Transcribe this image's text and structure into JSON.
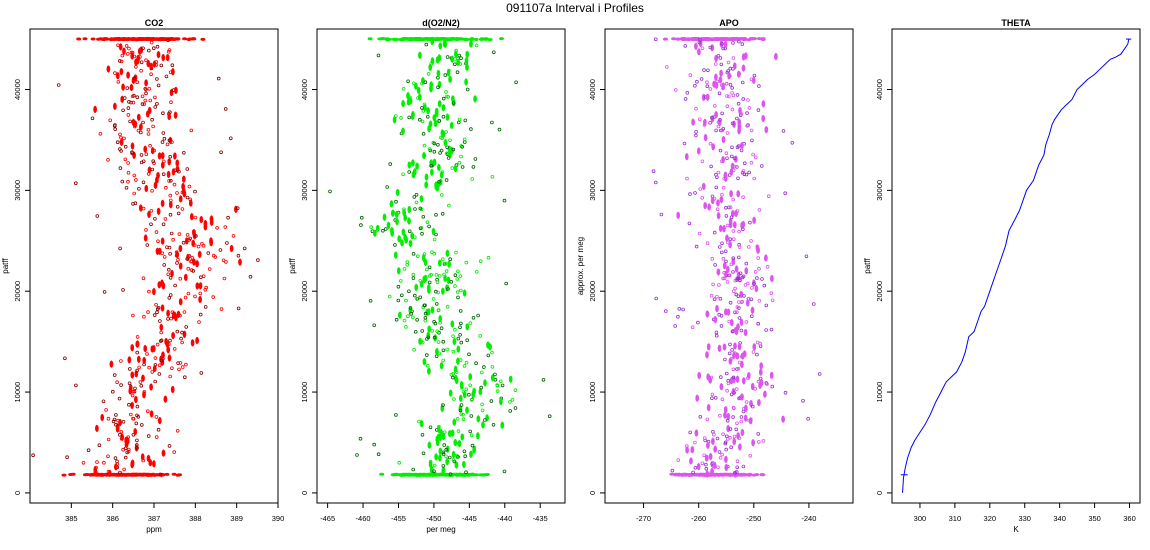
{
  "figure": {
    "title": "091107a   Interval i Profiles"
  },
  "chart_data": [
    {
      "type": "scatter",
      "title": "CO2",
      "xlabel": "ppm",
      "ylabel": "patff",
      "xlim": [
        384.0,
        390.0
      ],
      "ylim": [
        -1000,
        46000
      ],
      "xticks": [
        "385",
        "386",
        "387",
        "388",
        "389",
        "390"
      ],
      "yticks": [
        "0",
        "10000",
        "20000",
        "30000",
        "40000"
      ],
      "color": "#ff0000",
      "profile": [
        [
          1800,
          386.3
        ],
        [
          3000,
          386.3
        ],
        [
          5000,
          386.5
        ],
        [
          8000,
          386.5
        ],
        [
          10000,
          386.7
        ],
        [
          12000,
          386.9
        ],
        [
          14000,
          387.1
        ],
        [
          16000,
          387.3
        ],
        [
          18000,
          387.5
        ],
        [
          20000,
          387.7
        ],
        [
          22000,
          387.8
        ],
        [
          24000,
          387.9
        ],
        [
          26000,
          387.8
        ],
        [
          28000,
          387.5
        ],
        [
          30000,
          387.2
        ],
        [
          32000,
          387.0
        ],
        [
          34000,
          386.9
        ],
        [
          36000,
          386.7
        ],
        [
          38000,
          386.6
        ],
        [
          40000,
          386.7
        ],
        [
          42000,
          386.8
        ],
        [
          44000,
          386.9
        ],
        [
          45000,
          386.8
        ]
      ],
      "spread": 0.55,
      "dark_edge": "#8b0000"
    },
    {
      "type": "scatter",
      "title": "d(O2/N2)",
      "xlabel": "per meg",
      "ylabel": "patff",
      "xlim": [
        -466.5,
        -431.5
      ],
      "ylim": [
        -1000,
        46000
      ],
      "xticks": [
        "-465",
        "-460",
        "-455",
        "-450",
        "-445",
        "-440",
        "-435"
      ],
      "yticks": [
        "0",
        "10000",
        "20000",
        "30000",
        "40000"
      ],
      "color": "#00ee00",
      "profile": [
        [
          1800,
          -449.5
        ],
        [
          3500,
          -448.5
        ],
        [
          6000,
          -447.0
        ],
        [
          8000,
          -444.5
        ],
        [
          10000,
          -443.5
        ],
        [
          12000,
          -445.5
        ],
        [
          14000,
          -446.5
        ],
        [
          16000,
          -449.5
        ],
        [
          18000,
          -451.0
        ],
        [
          20000,
          -450.0
        ],
        [
          22000,
          -449.0
        ],
        [
          24000,
          -451.5
        ],
        [
          26000,
          -453.5
        ],
        [
          28000,
          -454.0
        ],
        [
          30000,
          -451.5
        ],
        [
          32000,
          -449.5
        ],
        [
          34000,
          -449.0
        ],
        [
          36000,
          -450.0
        ],
        [
          38000,
          -451.0
        ],
        [
          40000,
          -450.5
        ],
        [
          42000,
          -449.0
        ],
        [
          44000,
          -447.0
        ],
        [
          45000,
          -450.0
        ]
      ],
      "spread": 3.2,
      "dark_edge": "#006400"
    },
    {
      "type": "scatter",
      "title": "APO",
      "xlabel": "",
      "ylabel": "approx. per meg",
      "xlim": [
        -277.0,
        -232.0
      ],
      "ylim": [
        -1000,
        46000
      ],
      "xticks": [
        "-270",
        "-260",
        "-250",
        "-240"
      ],
      "yticks": [
        "0",
        "10000",
        "20000",
        "30000",
        "40000"
      ],
      "color": "#dd55ee",
      "profile": [
        [
          1800,
          -257.5
        ],
        [
          4000,
          -256.0
        ],
        [
          8000,
          -253.0
        ],
        [
          12000,
          -252.0
        ],
        [
          16000,
          -253.5
        ],
        [
          20000,
          -253.0
        ],
        [
          24000,
          -253.5
        ],
        [
          28000,
          -255.0
        ],
        [
          32000,
          -254.5
        ],
        [
          36000,
          -255.0
        ],
        [
          40000,
          -256.0
        ],
        [
          44000,
          -255.5
        ],
        [
          45000,
          -257.0
        ]
      ],
      "spread": 3.6,
      "dark_edge": "#9932cc"
    },
    {
      "type": "line",
      "title": "THETA",
      "xlabel": "K",
      "ylabel": "patff",
      "xlim": [
        292.0,
        363.0
      ],
      "ylim": [
        -1000,
        46000
      ],
      "xticks": [
        "300",
        "310",
        "320",
        "330",
        "340",
        "350",
        "360"
      ],
      "yticks": [
        "0",
        "10000",
        "20000",
        "30000",
        "40000"
      ],
      "color": "#0000ff",
      "series": [
        {
          "x": [
            295.0,
            295.3,
            295.8,
            296.5,
            297.5,
            298.5,
            300.0,
            301.5,
            303.0,
            304.5,
            306.0,
            307.5,
            309.0,
            310.5,
            312.0,
            313.0,
            314.0,
            315.5,
            316.5,
            317.5,
            318.5,
            320.0,
            321.0,
            322.0,
            323.0,
            324.5,
            325.5,
            327.0,
            328.5,
            329.5,
            330.5,
            331.5,
            332.5,
            333.0,
            334.0,
            335.5,
            336.0,
            337.0,
            337.8,
            338.5,
            339.5,
            340.5,
            342.0,
            343.5,
            345.0,
            346.5,
            348.0,
            350.0,
            351.5,
            353.0,
            354.5,
            356.0,
            357.5,
            358.5,
            359.5,
            359.8
          ],
          "y": [
            0,
            1500,
            2500,
            3500,
            4500,
            5200,
            6000,
            6800,
            7800,
            9000,
            10000,
            11000,
            11500,
            12000,
            13000,
            14000,
            15500,
            16000,
            17000,
            18000,
            18500,
            20000,
            21000,
            22000,
            23000,
            24500,
            26000,
            27000,
            28000,
            29000,
            30000,
            30500,
            31000,
            31500,
            32500,
            33500,
            34500,
            35500,
            36500,
            37000,
            37500,
            38000,
            38500,
            39000,
            40000,
            40500,
            41000,
            41500,
            42000,
            42500,
            43000,
            43200,
            43500,
            44000,
            44500,
            45000
          ]
        }
      ]
    }
  ]
}
